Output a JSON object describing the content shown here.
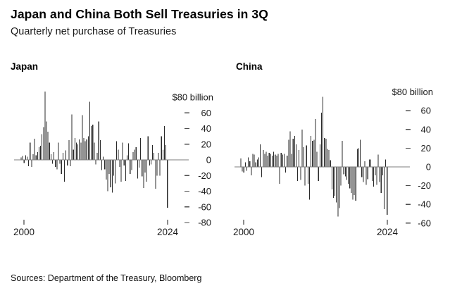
{
  "header": {
    "title": "Japan and China Both Sell Treasuries in 3Q",
    "subtitle": "Quarterly net purchase of Treasuries"
  },
  "source_line": "Sources: Department of the Treasury, Bloomberg",
  "colors": {
    "bar": "#2a2a2a",
    "axis_line": "#7d7d7d",
    "tick_dash": "#4d4d4d",
    "text": "#1a1a1a"
  },
  "chart_data": [
    {
      "type": "bar",
      "title": "Japan",
      "unit_label": "$80 billion",
      "frequency": "quarterly",
      "period_start": "2000 Q1",
      "period_end": "2024 Q3",
      "x_tick_labels": [
        "2000",
        "2024"
      ],
      "y_tick_labels": [
        60,
        40,
        20,
        0,
        -20,
        -40,
        -60,
        -80
      ],
      "ylim": [
        -80,
        90
      ],
      "grid": false,
      "legend": "none",
      "values": [
        3,
        5,
        -4,
        6,
        4,
        -8,
        22,
        -9,
        7,
        27,
        6,
        10,
        16,
        18,
        33,
        42,
        87,
        49,
        36,
        22,
        7,
        -5,
        10,
        -9,
        -12,
        22,
        -5,
        -18,
        9,
        -28,
        12,
        -7,
        25,
        -8,
        58,
        13,
        28,
        22,
        20,
        26,
        22,
        57,
        28,
        24,
        26,
        30,
        74,
        43,
        45,
        22,
        -6,
        9,
        49,
        25,
        -13,
        4,
        -12,
        -25,
        -40,
        -18,
        -35,
        -42,
        -20,
        -30,
        24,
        13,
        -9,
        -28,
        22,
        -7,
        -27,
        6,
        21,
        -18,
        -13,
        10,
        13,
        16,
        -24,
        -10,
        28,
        -21,
        -36,
        -16,
        -28,
        30,
        -7,
        -6,
        19,
        9,
        -37,
        -20,
        9,
        -20,
        30,
        13,
        43,
        19,
        -61
      ]
    },
    {
      "type": "bar",
      "title": "China",
      "unit_label": "$80 billion",
      "frequency": "quarterly",
      "period_start": "2000 Q1",
      "period_end": "2024 Q3",
      "x_tick_labels": [
        "2000",
        "2024"
      ],
      "y_tick_labels": [
        60,
        40,
        20,
        0,
        -20,
        -40,
        -60
      ],
      "ylim": [
        -60,
        80
      ],
      "grid": false,
      "legend": "none",
      "values": [
        9,
        -5,
        -6,
        5,
        -4,
        10,
        6,
        -9,
        14,
        13,
        5,
        8,
        10,
        24,
        -11,
        18,
        14,
        16,
        12,
        15,
        14,
        12,
        16,
        13,
        12,
        14,
        -18,
        15,
        13,
        14,
        -6,
        12,
        29,
        38,
        14,
        30,
        33,
        24,
        -15,
        18,
        -14,
        40,
        21,
        -20,
        23,
        -18,
        -35,
        33,
        28,
        29,
        51,
        16,
        -15,
        24,
        58,
        75,
        31,
        30,
        19,
        18,
        7,
        -24,
        -33,
        -31,
        -38,
        -53,
        -44,
        -20,
        28,
        -8,
        -10,
        -14,
        -18,
        -23,
        -28,
        -35,
        -30,
        -36,
        19,
        20,
        29,
        -11,
        -16,
        6,
        -19,
        -13,
        8,
        8,
        -15,
        -21,
        -9,
        -19,
        13,
        -16,
        -28,
        -9,
        -45,
        8,
        -51
      ]
    }
  ]
}
